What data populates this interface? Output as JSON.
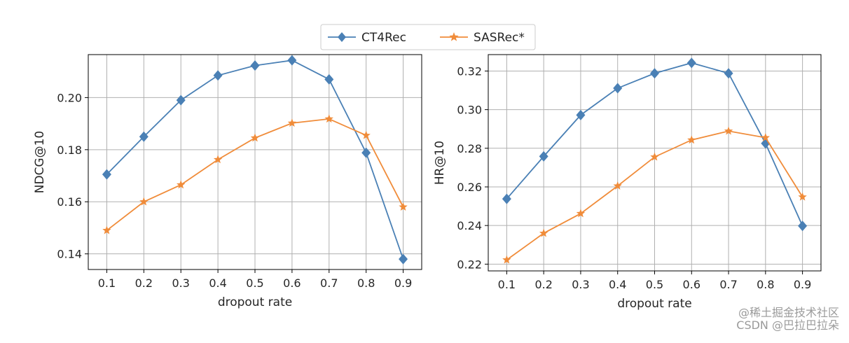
{
  "legend": {
    "entries": [
      {
        "name": "CT4Rec",
        "marker": "diamond",
        "color": "#4a80b5"
      },
      {
        "name": "SASRec*",
        "marker": "star",
        "color": "#f08c3a"
      }
    ]
  },
  "chart_data": [
    {
      "type": "line",
      "title": "",
      "xlabel": "dropout rate",
      "ylabel": "NDCG@10",
      "x": [
        0.1,
        0.2,
        0.3,
        0.4,
        0.5,
        0.6,
        0.7,
        0.8,
        0.9
      ],
      "xticks": [
        "0.1",
        "0.2",
        "0.3",
        "0.4",
        "0.5",
        "0.6",
        "0.7",
        "0.8",
        "0.9"
      ],
      "xlim": [
        0.05,
        0.95
      ],
      "ylim": [
        0.134,
        0.2165
      ],
      "yticks": [
        "0.14",
        "0.16",
        "0.18",
        "0.20"
      ],
      "ytick_values": [
        0.14,
        0.16,
        0.18,
        0.2
      ],
      "grid": true,
      "series": [
        {
          "name": "CT4Rec",
          "values": [
            0.1705,
            0.185,
            0.199,
            0.2085,
            0.2123,
            0.2143,
            0.207,
            0.1788,
            0.138
          ]
        },
        {
          "name": "SASRec*",
          "values": [
            0.149,
            0.16,
            0.1665,
            0.1762,
            0.1845,
            0.1902,
            0.1918,
            0.1855,
            0.158
          ]
        }
      ]
    },
    {
      "type": "line",
      "title": "",
      "xlabel": "dropout rate",
      "ylabel": "HR@10",
      "x": [
        0.1,
        0.2,
        0.3,
        0.4,
        0.5,
        0.6,
        0.7,
        0.8,
        0.9
      ],
      "xticks": [
        "0.1",
        "0.2",
        "0.3",
        "0.4",
        "0.5",
        "0.6",
        "0.7",
        "0.8",
        "0.9"
      ],
      "xlim": [
        0.05,
        0.95
      ],
      "ylim": [
        0.2165,
        0.3285
      ],
      "yticks": [
        "0.22",
        "0.24",
        "0.26",
        "0.28",
        "0.30",
        "0.32"
      ],
      "ytick_values": [
        0.22,
        0.24,
        0.26,
        0.28,
        0.3,
        0.32
      ],
      "grid": true,
      "series": [
        {
          "name": "CT4Rec",
          "values": [
            0.2538,
            0.2758,
            0.2972,
            0.3111,
            0.3188,
            0.3242,
            0.3188,
            0.2825,
            0.2398
          ]
        },
        {
          "name": "SASRec*",
          "values": [
            0.2222,
            0.236,
            0.2462,
            0.2605,
            0.2755,
            0.2843,
            0.2889,
            0.2855,
            0.2548
          ]
        }
      ]
    }
  ],
  "watermark": {
    "line1": "@稀土掘金技术社区",
    "line2": "CSDN @巴拉巴拉朵"
  }
}
